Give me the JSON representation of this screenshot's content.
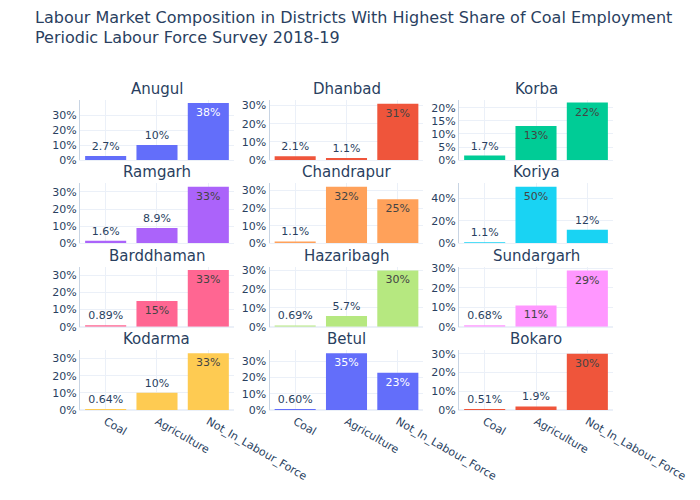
{
  "title": "Labour Market Composition in Districts With Highest Share of Coal Employment",
  "subtitle": "Periodic Labour Force Survey 2018-19",
  "chart_data": [
    {
      "type": "bar",
      "title": "Anugul",
      "categories": [
        "Coal",
        "Agriculture",
        "Not_In_Labour_Force"
      ],
      "values": [
        2.7,
        10,
        38
      ],
      "value_labels": [
        "2.7%",
        "10%",
        "38%"
      ],
      "color": "#636efa",
      "ylim": [
        0,
        40
      ],
      "yticks": [
        {
          "value": 0,
          "label": "0%"
        },
        {
          "value": 10,
          "label": "10%"
        },
        {
          "value": 20,
          "label": "20%"
        },
        {
          "value": 30,
          "label": "30%"
        }
      ],
      "grid": true,
      "data_labels": true,
      "tick_labels": "y"
    },
    {
      "type": "bar",
      "title": "Dhanbad",
      "categories": [
        "Coal",
        "Agriculture",
        "Not_In_Labour_Force"
      ],
      "values": [
        2.1,
        1.1,
        31
      ],
      "value_labels": [
        "2.1%",
        "1.1%",
        "31%"
      ],
      "color": "#EF553B",
      "ylim": [
        0,
        33
      ],
      "yticks": [
        {
          "value": 0,
          "label": "0%"
        },
        {
          "value": 10,
          "label": "10%"
        },
        {
          "value": 20,
          "label": "20%"
        },
        {
          "value": 30,
          "label": "30%"
        }
      ],
      "grid": true,
      "data_labels": true,
      "tick_labels": "y"
    },
    {
      "type": "bar",
      "title": "Korba",
      "categories": [
        "Coal",
        "Agriculture",
        "Not_In_Labour_Force"
      ],
      "values": [
        1.7,
        13,
        22
      ],
      "value_labels": [
        "1.7%",
        "13%",
        "22%"
      ],
      "color": "#00cc96",
      "ylim": [
        0,
        23
      ],
      "yticks": [
        {
          "value": 0,
          "label": "0%"
        },
        {
          "value": 5,
          "label": "5%"
        },
        {
          "value": 10,
          "label": "10%"
        },
        {
          "value": 15,
          "label": "15%"
        },
        {
          "value": 20,
          "label": "20%"
        }
      ],
      "grid": true,
      "data_labels": true,
      "tick_labels": "y"
    },
    {
      "type": "bar",
      "title": "Ramgarh",
      "categories": [
        "Coal",
        "Agriculture",
        "Not_In_Labour_Force"
      ],
      "values": [
        1.6,
        8.9,
        33
      ],
      "value_labels": [
        "1.6%",
        "8.9%",
        "33%"
      ],
      "color": "#ab63fa",
      "ylim": [
        0,
        35
      ],
      "yticks": [
        {
          "value": 0,
          "label": "0%"
        },
        {
          "value": 10,
          "label": "10%"
        },
        {
          "value": 20,
          "label": "20%"
        },
        {
          "value": 30,
          "label": "30%"
        }
      ],
      "grid": true,
      "data_labels": true,
      "tick_labels": "y"
    },
    {
      "type": "bar",
      "title": "Chandrapur",
      "categories": [
        "Coal",
        "Agriculture",
        "Not_In_Labour_Force"
      ],
      "values": [
        1.1,
        32,
        25
      ],
      "value_labels": [
        "1.1%",
        "32%",
        "25%"
      ],
      "color": "#FFA15A",
      "ylim": [
        0,
        34
      ],
      "yticks": [
        {
          "value": 0,
          "label": "0%"
        },
        {
          "value": 10,
          "label": "10%"
        },
        {
          "value": 20,
          "label": "20%"
        },
        {
          "value": 30,
          "label": "30%"
        }
      ],
      "grid": true,
      "data_labels": true,
      "tick_labels": "y"
    },
    {
      "type": "bar",
      "title": "Koriya",
      "categories": [
        "Coal",
        "Agriculture",
        "Not_In_Labour_Force"
      ],
      "values": [
        1.1,
        50,
        12
      ],
      "value_labels": [
        "1.1%",
        "50%",
        "12%"
      ],
      "color": "#19d3f3",
      "ylim": [
        0,
        53
      ],
      "yticks": [
        {
          "value": 0,
          "label": "0%"
        },
        {
          "value": 20,
          "label": "20%"
        },
        {
          "value": 40,
          "label": "40%"
        }
      ],
      "grid": true,
      "data_labels": true,
      "tick_labels": "y"
    },
    {
      "type": "bar",
      "title": "Barddhaman",
      "categories": [
        "Coal",
        "Agriculture",
        "Not_In_Labour_Force"
      ],
      "values": [
        0.89,
        15,
        33
      ],
      "value_labels": [
        "0.89%",
        "15%",
        "33%"
      ],
      "color": "#FF6692",
      "ylim": [
        0,
        35
      ],
      "yticks": [
        {
          "value": 0,
          "label": "0%"
        },
        {
          "value": 10,
          "label": "10%"
        },
        {
          "value": 20,
          "label": "20%"
        },
        {
          "value": 30,
          "label": "30%"
        }
      ],
      "grid": true,
      "data_labels": true,
      "tick_labels": "y"
    },
    {
      "type": "bar",
      "title": "Hazaribagh",
      "categories": [
        "Coal",
        "Agriculture",
        "Not_In_Labour_Force"
      ],
      "values": [
        0.69,
        5.7,
        30
      ],
      "value_labels": [
        "0.69%",
        "5.7%",
        "30%"
      ],
      "color": "#B6E880",
      "ylim": [
        0,
        32
      ],
      "yticks": [
        {
          "value": 0,
          "label": "0%"
        },
        {
          "value": 10,
          "label": "10%"
        },
        {
          "value": 20,
          "label": "20%"
        },
        {
          "value": 30,
          "label": "30%"
        }
      ],
      "grid": true,
      "data_labels": true,
      "tick_labels": "y"
    },
    {
      "type": "bar",
      "title": "Sundargarh",
      "categories": [
        "Coal",
        "Agriculture",
        "Not_In_Labour_Force"
      ],
      "values": [
        0.68,
        11,
        29
      ],
      "value_labels": [
        "0.68%",
        "11%",
        "29%"
      ],
      "color": "#FF97FF",
      "ylim": [
        0,
        31
      ],
      "yticks": [
        {
          "value": 0,
          "label": "0%"
        },
        {
          "value": 10,
          "label": "10%"
        },
        {
          "value": 20,
          "label": "20%"
        },
        {
          "value": 30,
          "label": "30%"
        }
      ],
      "grid": true,
      "data_labels": true,
      "tick_labels": "y"
    },
    {
      "type": "bar",
      "title": "Kodarma",
      "categories": [
        "Coal",
        "Agriculture",
        "Not_In_Labour_Force"
      ],
      "values": [
        0.64,
        10,
        33
      ],
      "value_labels": [
        "0.64%",
        "10%",
        "33%"
      ],
      "color": "#FECB52",
      "ylim": [
        0,
        35
      ],
      "yticks": [
        {
          "value": 0,
          "label": "0%"
        },
        {
          "value": 10,
          "label": "10%"
        },
        {
          "value": 20,
          "label": "20%"
        },
        {
          "value": 30,
          "label": "30%"
        }
      ],
      "grid": true,
      "data_labels": true
    },
    {
      "type": "bar",
      "title": "Betul",
      "categories": [
        "Coal",
        "Agriculture",
        "Not_In_Labour_Force"
      ],
      "values": [
        0.6,
        35,
        23
      ],
      "value_labels": [
        "0.60%",
        "35%",
        "23%"
      ],
      "color": "#636efa",
      "ylim": [
        0,
        37
      ],
      "yticks": [
        {
          "value": 0,
          "label": "0%"
        },
        {
          "value": 10,
          "label": "10%"
        },
        {
          "value": 20,
          "label": "20%"
        },
        {
          "value": 30,
          "label": "30%"
        }
      ],
      "grid": true,
      "data_labels": true
    },
    {
      "type": "bar",
      "title": "Bokaro",
      "categories": [
        "Coal",
        "Agriculture",
        "Not_In_Labour_Force"
      ],
      "values": [
        0.51,
        1.9,
        30
      ],
      "value_labels": [
        "0.51%",
        "1.9%",
        "30%"
      ],
      "color": "#EF553B",
      "ylim": [
        0,
        32
      ],
      "yticks": [
        {
          "value": 0,
          "label": "0%"
        },
        {
          "value": 10,
          "label": "10%"
        },
        {
          "value": 20,
          "label": "20%"
        },
        {
          "value": 30,
          "label": "30%"
        }
      ],
      "grid": true,
      "data_labels": true
    }
  ]
}
